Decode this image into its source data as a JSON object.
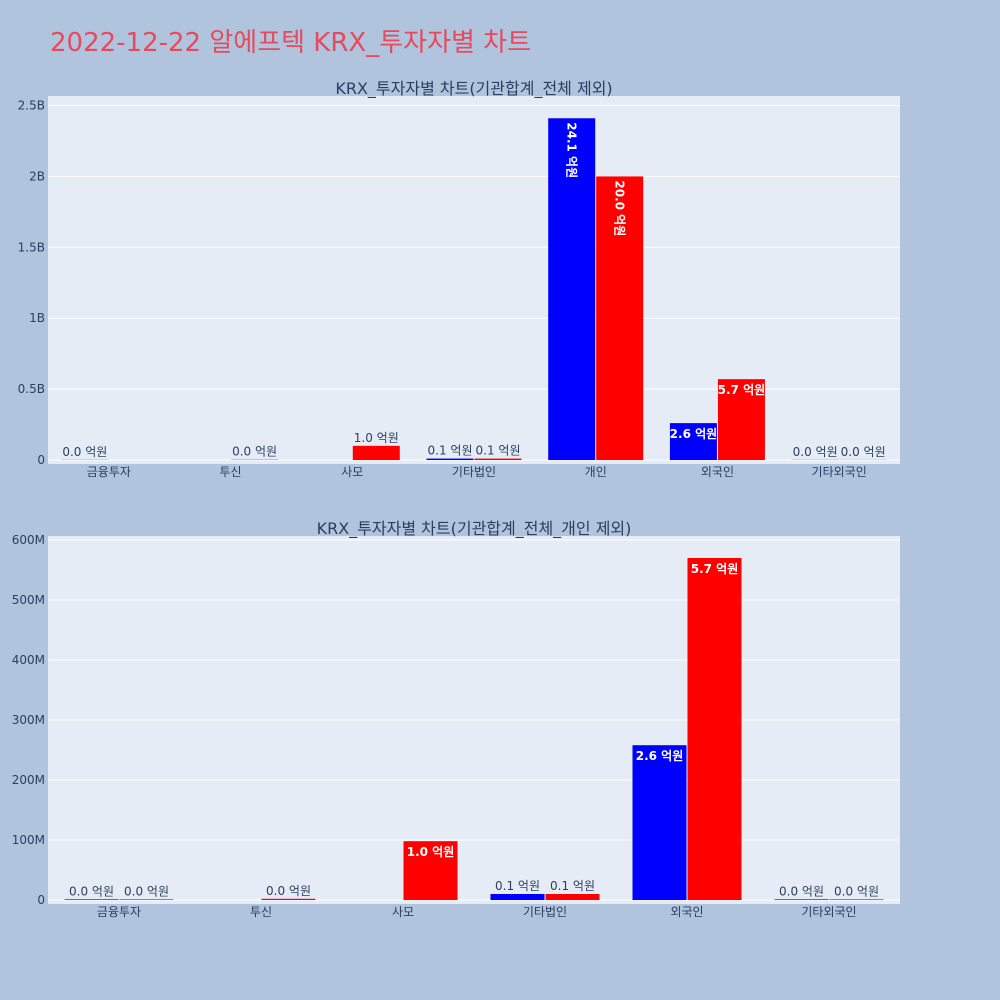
{
  "page": {
    "title": "2022-12-22 알에프텍 KRX_투자자별 차트"
  },
  "colors": {
    "background": "#b0c4de",
    "plot_bg": "#e5ecf6",
    "title": "#e8495c",
    "buy": "#0000ff",
    "sell": "#ff0000"
  },
  "chart_data": [
    {
      "type": "bar",
      "title": "KRX_투자자별 차트(기관합계_전체 제외)",
      "categories": [
        "금융투자",
        "투신",
        "사모",
        "기타법인",
        "개인",
        "외국인",
        "기타외국인"
      ],
      "series": [
        {
          "color": "#0000ff",
          "values": [
            1000000,
            0,
            0,
            10000000,
            2410000000,
            260000000,
            1000000
          ],
          "labels": [
            "0.0 억원",
            "",
            "",
            "0.1 억원",
            "24.1 억원",
            "2.6 억원",
            "0.0 억원"
          ]
        },
        {
          "color": "#ff0000",
          "values": [
            0,
            2000000,
            100000000,
            10000000,
            2000000000,
            570000000,
            1000000
          ],
          "labels": [
            "",
            "0.0 억원",
            "1.0 억원",
            "0.1 억원",
            "20.0 억원",
            "5.7 억원",
            "0.0 억원"
          ]
        }
      ],
      "yticks": [
        "0",
        "0.5B",
        "1B",
        "1.5B",
        "2B",
        "2.5B"
      ],
      "ytick_values": [
        0,
        500000000,
        1000000000,
        1500000000,
        2000000000,
        2500000000
      ],
      "ylim": [
        0,
        2560000000
      ],
      "grid": true
    },
    {
      "type": "bar",
      "title": "KRX_투자자별 차트(기관합계_전체_개인 제외)",
      "categories": [
        "금융투자",
        "투신",
        "사모",
        "기타법인",
        "외국인",
        "기타외국인"
      ],
      "series": [
        {
          "color": "#0000ff",
          "values": [
            1000000,
            0,
            0,
            10000000,
            258000000,
            1000000
          ],
          "labels": [
            "0.0 억원",
            "",
            "",
            "0.1 억원",
            "2.6 억원",
            "0.0 억원"
          ]
        },
        {
          "color": "#ff0000",
          "values": [
            1000000,
            2000000,
            98000000,
            10000000,
            570000000,
            1000000
          ],
          "labels": [
            "0.0 억원",
            "0.0 억원",
            "1.0 억원",
            "0.1 억원",
            "5.7 억원",
            "0.0 억원"
          ]
        }
      ],
      "yticks": [
        "0",
        "100M",
        "200M",
        "300M",
        "400M",
        "500M",
        "600M"
      ],
      "ytick_values": [
        0,
        100000000,
        200000000,
        300000000,
        400000000,
        500000000,
        600000000
      ],
      "ylim": [
        0,
        600000000
      ],
      "grid": true
    }
  ]
}
